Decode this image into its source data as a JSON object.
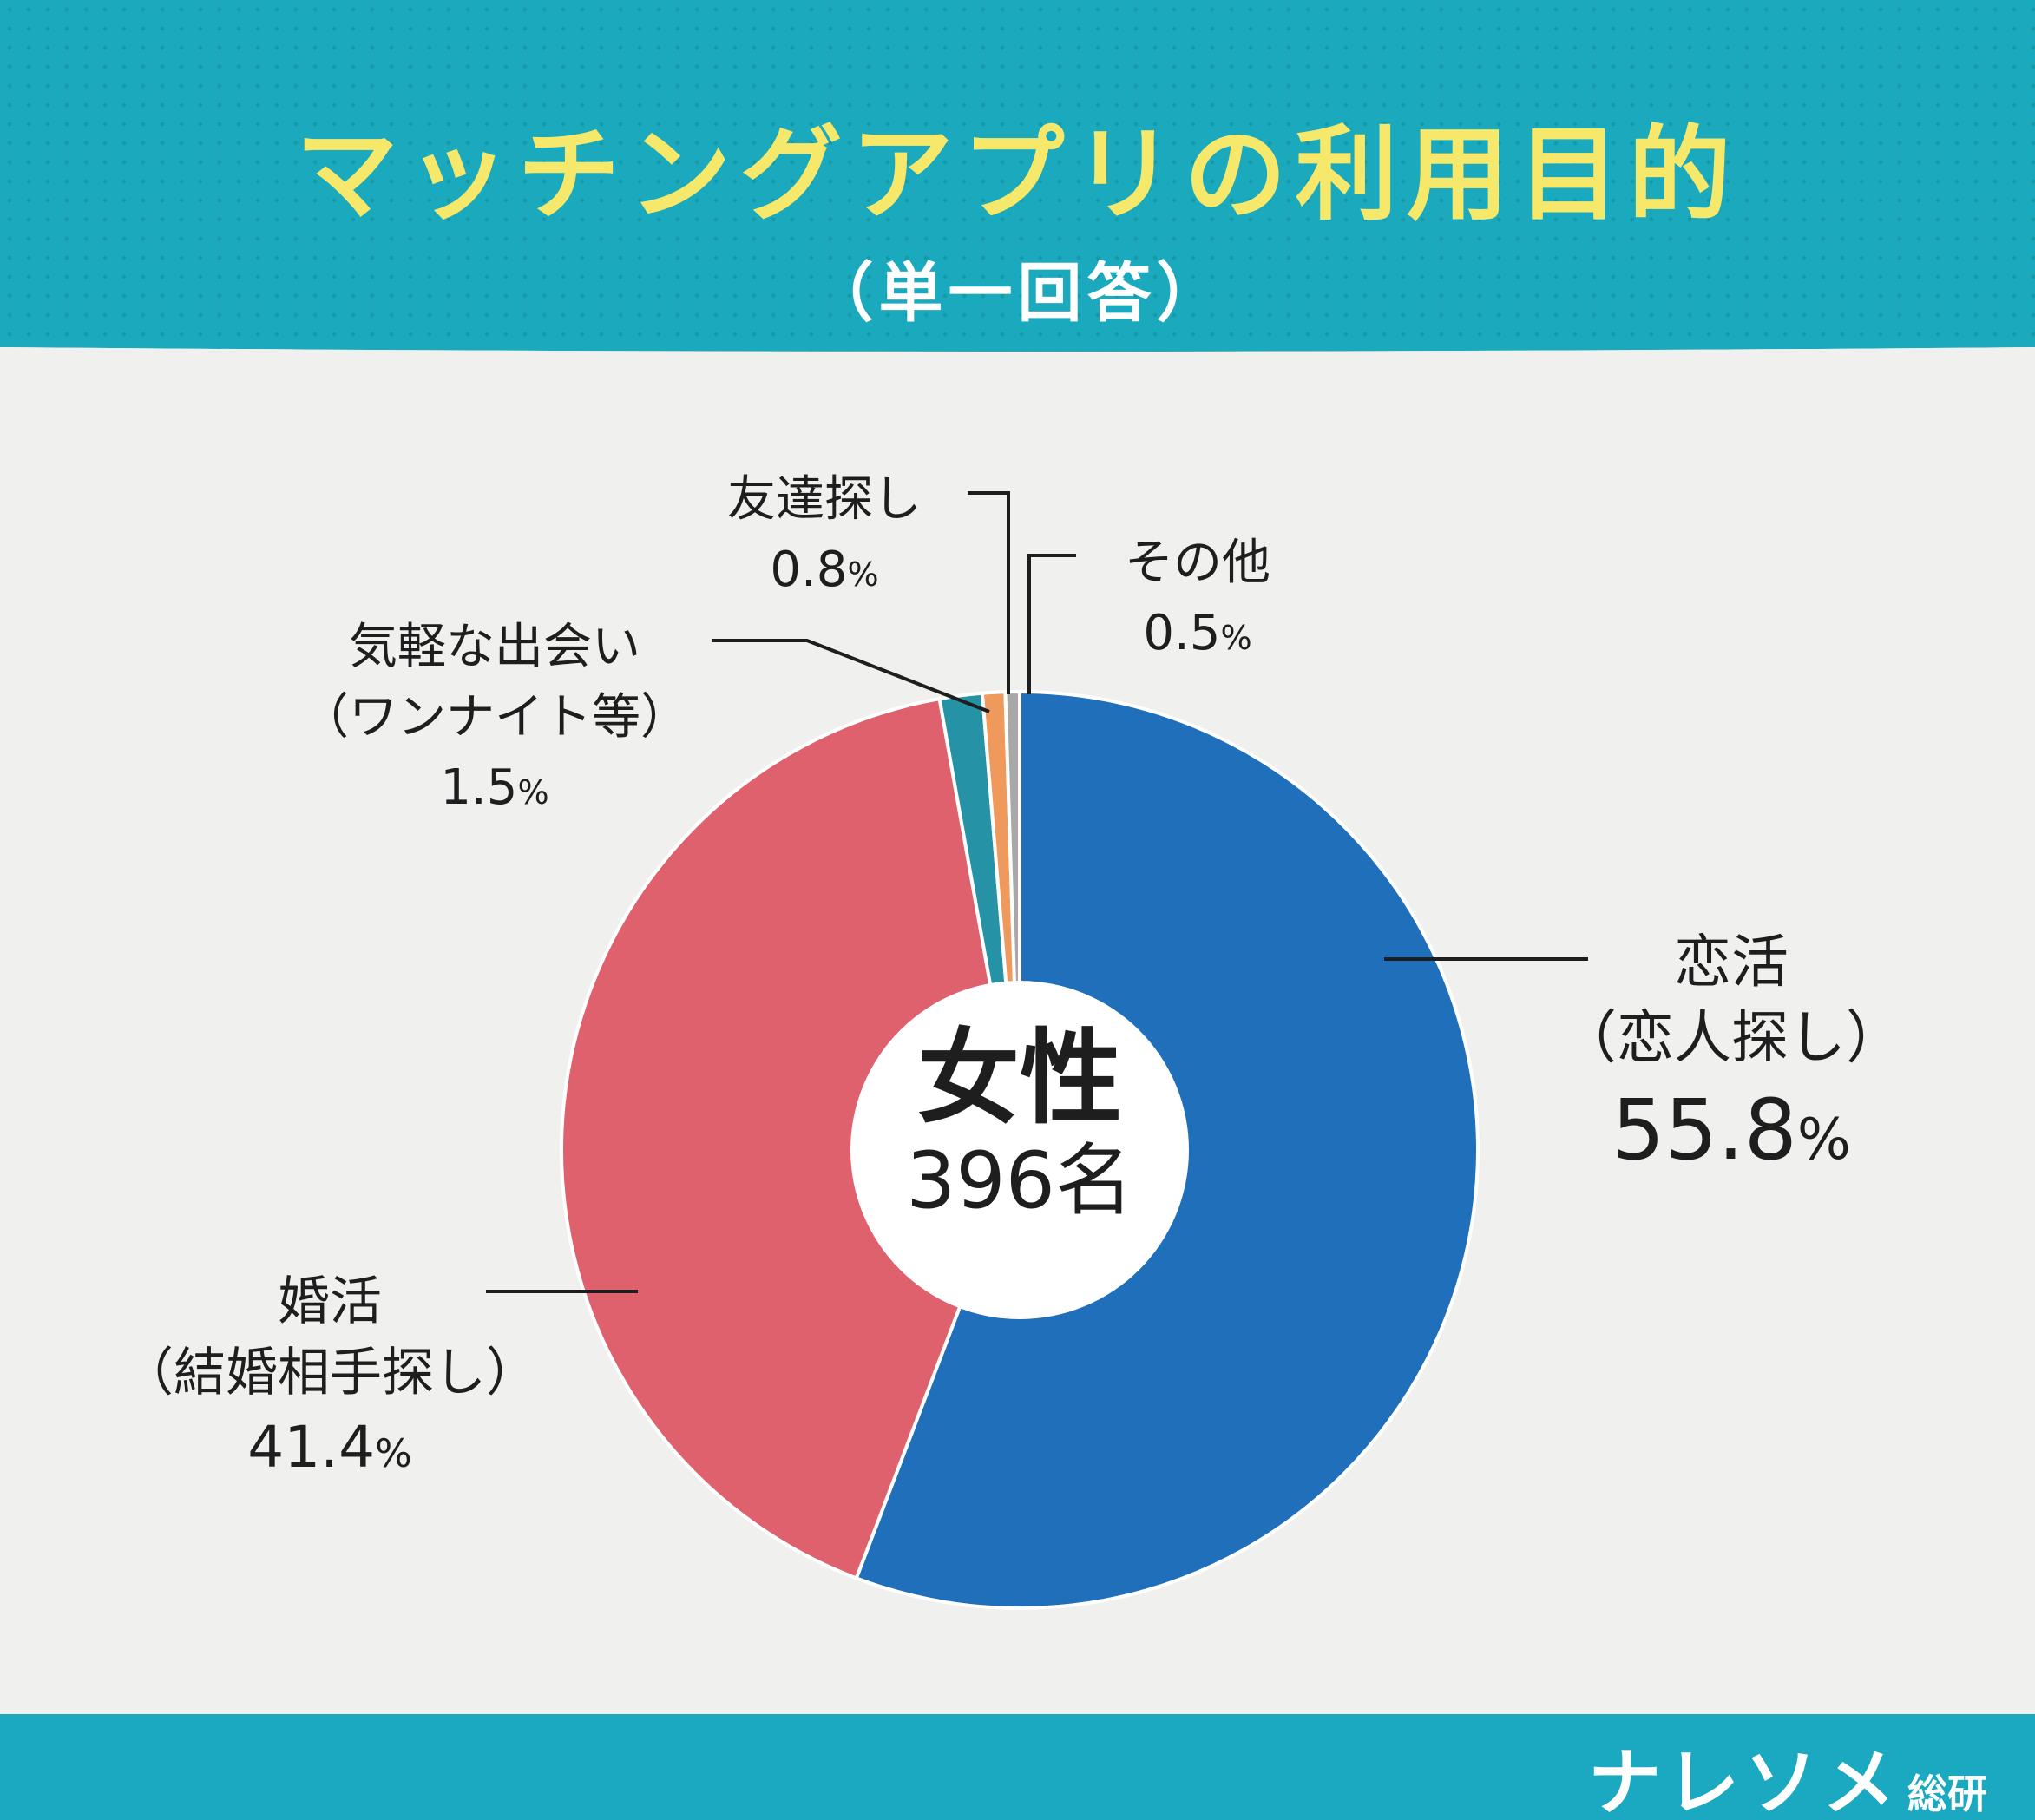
{
  "chart_data": {
    "type": "pie",
    "title": "マッチングアプリの利用目的",
    "subtitle": "（単一回答）",
    "center": {
      "gender": "女性",
      "count": "396名"
    },
    "percent_sign": "%",
    "categories": [
      "恋活（恋人探し）",
      "婚活（結婚相手探し）",
      "気軽な出会い（ワンナイト等）",
      "友達探し",
      "その他"
    ],
    "values": [
      55.8,
      41.4,
      1.5,
      0.8,
      0.5
    ],
    "colors": [
      "#1f6fba",
      "#de616d",
      "#2592a6",
      "#ef9a5c",
      "#a8a8a8"
    ],
    "labels": [
      {
        "line1": "恋活",
        "line2": "（恋人探し）",
        "value": "55.8"
      },
      {
        "line1": "婚活",
        "line2": "（結婚相手探し）",
        "value": "41.4"
      },
      {
        "line1": "気軽な出会い",
        "line2": "（ワンナイト等）",
        "value": "1.5"
      },
      {
        "line1": "友達探し",
        "value": "0.8"
      },
      {
        "line1": "その他",
        "value": "0.5"
      }
    ]
  },
  "footer": {
    "brand": "ナレソメ",
    "brand_suffix": "総研"
  }
}
